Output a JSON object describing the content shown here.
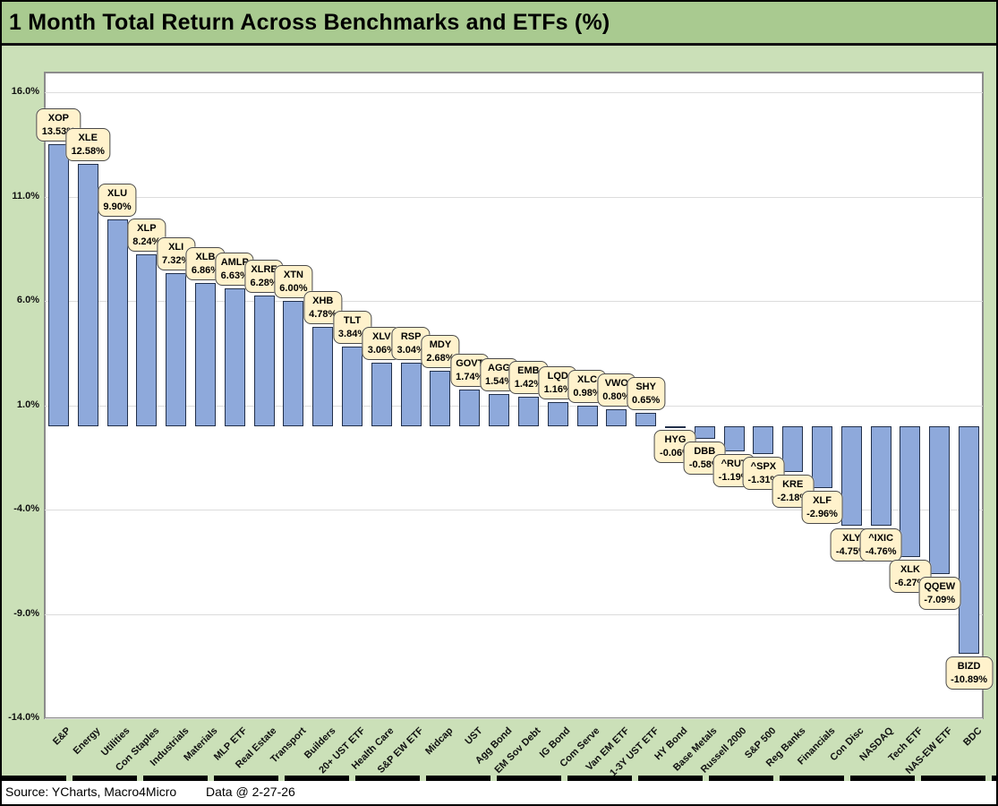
{
  "window": {
    "title": "1 Month Total Return Across Benchmarks and ETFs (%)"
  },
  "footer": {
    "source": "Source: YCharts, Macro4Micro",
    "data_date": "Data @ 2-27-26"
  },
  "colors": {
    "background_green": "#CBE0B8",
    "title_band_green": "#A9CA90",
    "bar_fill": "#8EA9DB",
    "bar_border": "#22304a",
    "callout_fill": "#FFF2CC",
    "callout_border": "#4a4a4a",
    "plot_background": "#FFFFFF",
    "gridline": "#DCDCDC"
  },
  "chart_data": {
    "type": "bar",
    "title": "1 Month Total Return Across Benchmarks and ETFs (%)",
    "xlabel": "",
    "ylabel": "",
    "ylim": [
      -14.0,
      16.0
    ],
    "grid": true,
    "legend_position": "none",
    "y_ticks": [
      {
        "label": "16.0%",
        "value": 16.0
      },
      {
        "label": "11.0%",
        "value": 11.0
      },
      {
        "label": "6.0%",
        "value": 6.0
      },
      {
        "label": "1.0%",
        "value": 1.0
      },
      {
        "label": "-4.0%",
        "value": -4.0
      },
      {
        "label": "-9.0%",
        "value": -9.0
      },
      {
        "label": "-14.0%",
        "value": -14.0
      }
    ],
    "bars": [
      {
        "category": "E&P",
        "ticker": "XOP",
        "value": 13.53,
        "label": "13.53%"
      },
      {
        "category": "Energy",
        "ticker": "XLE",
        "value": 12.58,
        "label": "12.58%"
      },
      {
        "category": "Utilities",
        "ticker": "XLU",
        "value": 9.9,
        "label": "9.90%"
      },
      {
        "category": "Con Staples",
        "ticker": "XLP",
        "value": 8.24,
        "label": "8.24%"
      },
      {
        "category": "Industrials",
        "ticker": "XLI",
        "value": 7.32,
        "label": "7.32%"
      },
      {
        "category": "Materials",
        "ticker": "XLB",
        "value": 6.86,
        "label": "6.86%"
      },
      {
        "category": "MLP ETF",
        "ticker": "AMLP",
        "value": 6.63,
        "label": "6.63%"
      },
      {
        "category": "Real Estate",
        "ticker": "XLRE",
        "value": 6.28,
        "label": "6.28%"
      },
      {
        "category": "Transport",
        "ticker": "XTN",
        "value": 6.0,
        "label": "6.00%"
      },
      {
        "category": "Builders",
        "ticker": "XHB",
        "value": 4.78,
        "label": "4.78%"
      },
      {
        "category": "20+ UST ETF",
        "ticker": "TLT",
        "value": 3.84,
        "label": "3.84%"
      },
      {
        "category": "Health Care",
        "ticker": "XLV",
        "value": 3.06,
        "label": "3.06%"
      },
      {
        "category": "S&P EW ETF",
        "ticker": "RSP",
        "value": 3.04,
        "label": "3.04%"
      },
      {
        "category": "Midcap",
        "ticker": "MDY",
        "value": 2.68,
        "label": "2.68%"
      },
      {
        "category": "UST",
        "ticker": "GOVT",
        "value": 1.74,
        "label": "1.74%"
      },
      {
        "category": "Agg Bond",
        "ticker": "AGG",
        "value": 1.54,
        "label": "1.54%"
      },
      {
        "category": "EM Sov Debt",
        "ticker": "EMB",
        "value": 1.42,
        "label": "1.42%"
      },
      {
        "category": "IG Bond",
        "ticker": "LQD",
        "value": 1.16,
        "label": "1.16%"
      },
      {
        "category": "Com Serve",
        "ticker": "XLC",
        "value": 0.98,
        "label": "0.98%"
      },
      {
        "category": "Van EM ETF",
        "ticker": "VWO",
        "value": 0.8,
        "label": "0.80%"
      },
      {
        "category": "1-3Y UST ETF",
        "ticker": "SHY",
        "value": 0.65,
        "label": "0.65%"
      },
      {
        "category": "HY Bond",
        "ticker": "HYG",
        "value": -0.06,
        "label": "-0.06%"
      },
      {
        "category": "Base Metals",
        "ticker": "DBB",
        "value": -0.58,
        "label": "-0.58%"
      },
      {
        "category": "Russell 2000",
        "ticker": "^RUT",
        "value": -1.19,
        "label": "-1.19%"
      },
      {
        "category": "S&P 500",
        "ticker": "^SPX",
        "value": -1.31,
        "label": "-1.31%"
      },
      {
        "category": "Reg Banks",
        "ticker": "KRE",
        "value": -2.18,
        "label": "-2.18%"
      },
      {
        "category": "Financials",
        "ticker": "XLF",
        "value": -2.96,
        "label": "-2.96%"
      },
      {
        "category": "Con Disc",
        "ticker": "XLY",
        "value": -4.75,
        "label": "-4.75%"
      },
      {
        "category": "NASDAQ",
        "ticker": "^IXIC",
        "value": -4.76,
        "label": "-4.76%"
      },
      {
        "category": "Tech ETF",
        "ticker": "XLK",
        "value": -6.27,
        "label": "-6.27%"
      },
      {
        "category": "NAS-EW ETF",
        "ticker": "QQEW",
        "value": -7.09,
        "label": "-7.09%"
      },
      {
        "category": "BDC",
        "ticker": "BIZD",
        "value": -10.89,
        "label": "-10.89%"
      }
    ]
  }
}
